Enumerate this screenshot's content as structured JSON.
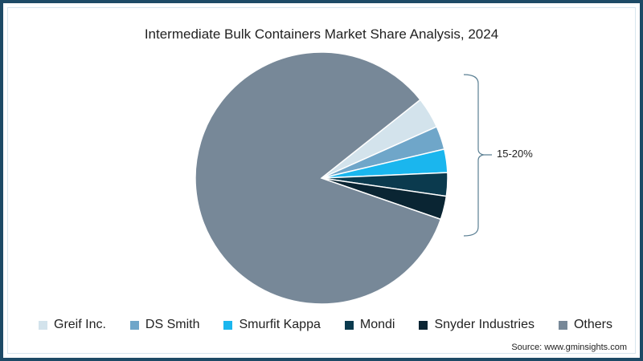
{
  "chart_data": {
    "type": "pie",
    "title": "Intermediate Bulk Containers Market Share Analysis, 2024",
    "categories": [
      "Greif Inc.",
      "DS Smith",
      "Smurfit Kappa",
      "Mondi",
      "Snyder Industries",
      "Others"
    ],
    "values": [
      4,
      3,
      3,
      3,
      3,
      84
    ],
    "colors": [
      "#d3e3ec",
      "#6fa6c9",
      "#1ab6ee",
      "#0b3a4e",
      "#0a2533",
      "#778898"
    ],
    "annotation": "15-20%",
    "annotation_note": "Bracket groups top five companies",
    "legend_position": "bottom",
    "source": "Source: www.gminsights.com"
  },
  "title": "Intermediate Bulk Containers Market Share Analysis, 2024",
  "bracket_label": "15-20%",
  "legend": [
    {
      "label": "Greif Inc.",
      "color": "#d3e3ec"
    },
    {
      "label": "DS Smith",
      "color": "#6fa6c9"
    },
    {
      "label": "Smurfit Kappa",
      "color": "#1ab6ee"
    },
    {
      "label": "Mondi",
      "color": "#0b3a4e"
    },
    {
      "label": "Snyder Industries",
      "color": "#0a2533"
    },
    {
      "label": "Others",
      "color": "#778898"
    }
  ],
  "source": "Source: www.gminsights.com"
}
